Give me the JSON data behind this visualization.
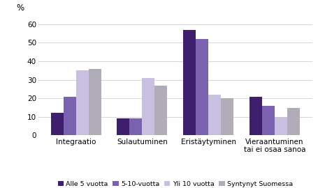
{
  "categories": [
    "Integraatio",
    "Sulautuminen",
    "Eristäytyminen",
    "Vieraantuminen\ntai ei osaa sanoa"
  ],
  "series": {
    "Alle 5 vuotta": [
      12,
      9,
      57,
      21
    ],
    "5-10-vuotta": [
      21,
      9,
      52,
      16
    ],
    "Yli 10 vuotta": [
      35,
      31,
      22,
      10
    ],
    "Syntynyt Suomessa": [
      36,
      27,
      20,
      15
    ]
  },
  "colors": {
    "Alle 5 vuotta": "#3d1f6d",
    "5-10-vuotta": "#7b62b0",
    "Yli 10 vuotta": "#c9bfe0",
    "Syntynyt Suomessa": "#b0adb8"
  },
  "ylabel": "%",
  "ylim": [
    0,
    65
  ],
  "yticks": [
    0,
    10,
    20,
    30,
    40,
    50,
    60
  ],
  "bar_width": 0.19,
  "legend_order": [
    "Alle 5 vuotta",
    "5-10-vuotta",
    "Yli 10 vuotta",
    "Syntynyt Suomessa"
  ],
  "background_color": "#ffffff",
  "grid_color": "#d0d0d0"
}
